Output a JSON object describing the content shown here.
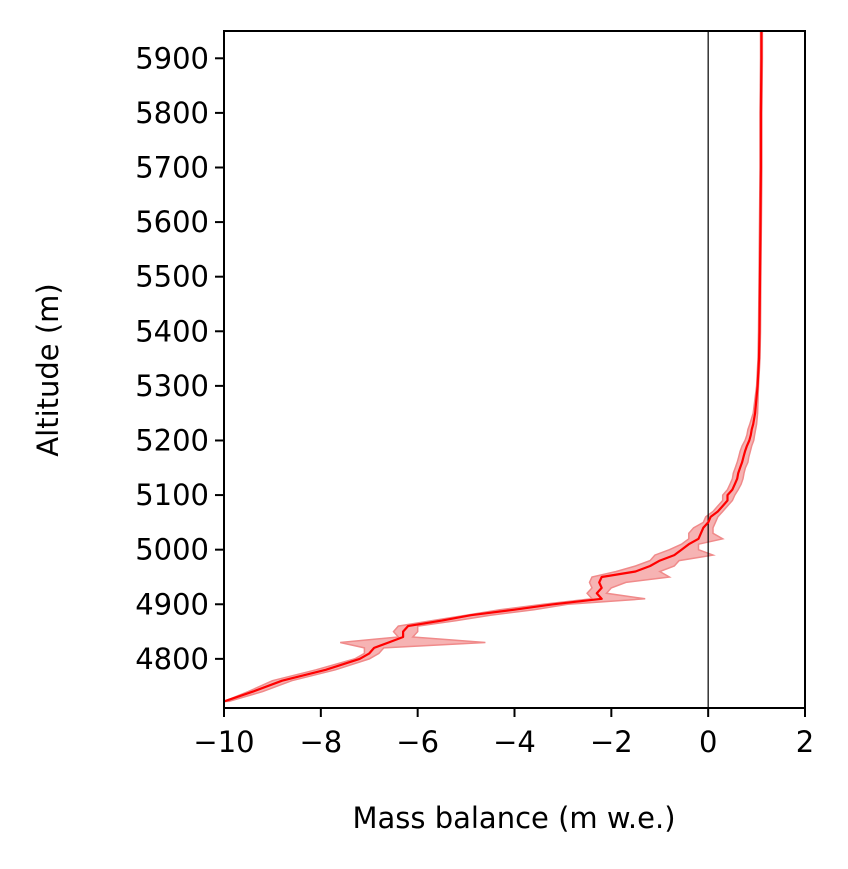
{
  "chart_data": {
    "type": "line",
    "title": "",
    "xlabel": "Mass balance (m w.e.)",
    "ylabel": "Altitude (m)",
    "xlim": [
      -10,
      2
    ],
    "ylim": [
      4710,
      5950
    ],
    "xticks": [
      -10,
      -8,
      -6,
      -4,
      -2,
      0,
      2
    ],
    "xtick_labels": [
      "−10",
      "−8",
      "−6",
      "−4",
      "−2",
      "0",
      "2"
    ],
    "yticks": [
      4800,
      4900,
      5000,
      5100,
      5200,
      5300,
      5400,
      5500,
      5600,
      5700,
      5800,
      5900
    ],
    "ytick_labels": [
      "4800",
      "4900",
      "5000",
      "5100",
      "5200",
      "5300",
      "5400",
      "5500",
      "5600",
      "5700",
      "5800",
      "5900"
    ],
    "grid": false,
    "legend": "none",
    "reference_line": {
      "x": 0,
      "color": "#000000"
    },
    "colors": {
      "line": "#ff0000",
      "band": "#f4a6a6"
    },
    "series": [
      {
        "altitude": [
          4722,
          4740,
          4760,
          4780,
          4800,
          4810,
          4820,
          4830,
          4840,
          4850,
          4860,
          4870,
          4880,
          4890,
          4900,
          4910,
          4920,
          4930,
          4940,
          4950,
          4960,
          4970,
          4980,
          4990,
          5000,
          5010,
          5020,
          5030,
          5040,
          5050,
          5060,
          5070,
          5080,
          5090,
          5100,
          5110,
          5120,
          5130,
          5140,
          5150,
          5160,
          5170,
          5180,
          5190,
          5200,
          5210,
          5220,
          5230,
          5250,
          5300,
          5350,
          5400,
          5500,
          5600,
          5700,
          5800,
          5900,
          5950
        ],
        "mass_balance": [
          -10.0,
          -9.4,
          -8.8,
          -7.9,
          -7.2,
          -7.0,
          -6.9,
          -6.6,
          -6.3,
          -6.3,
          -6.2,
          -5.5,
          -4.9,
          -4.0,
          -3.2,
          -2.2,
          -2.3,
          -2.2,
          -2.25,
          -2.2,
          -1.5,
          -1.2,
          -1.0,
          -0.7,
          -0.55,
          -0.4,
          -0.2,
          -0.15,
          -0.1,
          0.0,
          0.05,
          0.2,
          0.3,
          0.4,
          0.4,
          0.5,
          0.55,
          0.6,
          0.62,
          0.66,
          0.7,
          0.73,
          0.76,
          0.8,
          0.85,
          0.88,
          0.9,
          0.93,
          0.97,
          1.02,
          1.05,
          1.06,
          1.07,
          1.08,
          1.09,
          1.09,
          1.1,
          1.1
        ],
        "lower": [
          -10.0,
          -9.5,
          -9.0,
          -8.1,
          -7.3,
          -7.1,
          -7.1,
          -7.6,
          -6.4,
          -6.5,
          -6.4,
          -5.7,
          -5.0,
          -4.3,
          -3.4,
          -2.4,
          -2.5,
          -2.4,
          -2.45,
          -2.4,
          -1.9,
          -1.5,
          -1.2,
          -1.1,
          -0.8,
          -0.55,
          -0.4,
          -0.4,
          -0.3,
          -0.1,
          -0.05,
          0.1,
          0.2,
          0.3,
          0.3,
          0.4,
          0.45,
          0.5,
          0.52,
          0.56,
          0.6,
          0.63,
          0.66,
          0.7,
          0.76,
          0.8,
          0.82,
          0.86,
          0.93,
          1.0,
          1.03,
          1.04,
          1.05,
          1.06,
          1.07,
          1.07,
          1.08,
          1.08
        ],
        "upper": [
          -9.9,
          -9.2,
          -8.6,
          -7.7,
          -7.0,
          -6.8,
          -6.7,
          -4.6,
          -6.1,
          -6.0,
          -6.0,
          -5.2,
          -4.5,
          -3.6,
          -2.9,
          -1.3,
          -2.1,
          -2.0,
          -1.7,
          -0.8,
          -1.0,
          -0.7,
          -0.6,
          0.1,
          -0.2,
          -0.2,
          0.3,
          0.1,
          0.1,
          0.15,
          0.2,
          0.3,
          0.4,
          0.5,
          0.55,
          0.62,
          0.68,
          0.72,
          0.74,
          0.77,
          0.82,
          0.84,
          0.87,
          0.9,
          0.94,
          0.96,
          0.98,
          1.0,
          1.02,
          1.04,
          1.07,
          1.08,
          1.09,
          1.1,
          1.11,
          1.11,
          1.12,
          1.12
        ]
      }
    ]
  }
}
